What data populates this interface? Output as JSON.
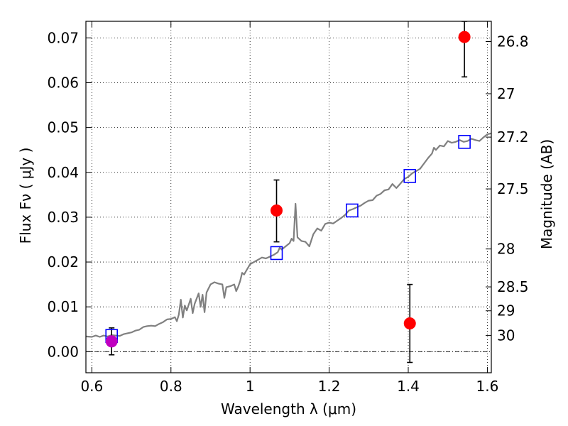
{
  "chart_data": {
    "type": "scatter",
    "xlabel": "Wavelength  λ (μm)",
    "ylabel": "Flux  Fν  ( μJy )",
    "y2label": "Magnitude (AB)",
    "xlim": [
      0.585,
      1.61
    ],
    "ylim": [
      -0.0047,
      0.0737
    ],
    "grid": true,
    "x_ticks": [
      {
        "value": 0.6,
        "label": "0.6"
      },
      {
        "value": 0.8,
        "label": "0.8"
      },
      {
        "value": 1.0,
        "label": "1"
      },
      {
        "value": 1.2,
        "label": "1.2"
      },
      {
        "value": 1.4,
        "label": "1.4"
      },
      {
        "value": 1.6,
        "label": "1.6"
      }
    ],
    "y_ticks": [
      {
        "value": 0.0,
        "label": "0.00"
      },
      {
        "value": 0.01,
        "label": "0.01"
      },
      {
        "value": 0.02,
        "label": "0.02"
      },
      {
        "value": 0.03,
        "label": "0.03"
      },
      {
        "value": 0.04,
        "label": "0.04"
      },
      {
        "value": 0.05,
        "label": "0.05"
      },
      {
        "value": 0.06,
        "label": "0.06"
      },
      {
        "value": 0.07,
        "label": "0.07"
      }
    ],
    "mag_ticks": [
      {
        "value": 26.8,
        "label": "26.8"
      },
      {
        "value": 27.0,
        "label": "27"
      },
      {
        "value": 27.2,
        "label": "27.2"
      },
      {
        "value": 27.5,
        "label": "27.5"
      },
      {
        "value": 28.0,
        "label": "28"
      },
      {
        "value": 28.5,
        "label": "28.5"
      },
      {
        "value": 29.0,
        "label": "29"
      },
      {
        "value": 30.0,
        "label": "30"
      }
    ],
    "series": [
      {
        "kind": "line",
        "color": "#808080",
        "points": [
          [
            0.585,
            0.0034
          ],
          [
            0.6,
            0.0033
          ],
          [
            0.61,
            0.0036
          ],
          [
            0.62,
            0.0033
          ],
          [
            0.63,
            0.0036
          ],
          [
            0.64,
            0.0034
          ],
          [
            0.65,
            0.0037
          ],
          [
            0.66,
            0.0036
          ],
          [
            0.67,
            0.0035
          ],
          [
            0.68,
            0.0039
          ],
          [
            0.69,
            0.0041
          ],
          [
            0.7,
            0.0043
          ],
          [
            0.71,
            0.0047
          ],
          [
            0.72,
            0.0049
          ],
          [
            0.73,
            0.0055
          ],
          [
            0.74,
            0.0057
          ],
          [
            0.75,
            0.0058
          ],
          [
            0.76,
            0.0057
          ],
          [
            0.77,
            0.0062
          ],
          [
            0.78,
            0.0066
          ],
          [
            0.79,
            0.0072
          ],
          [
            0.8,
            0.0073
          ],
          [
            0.81,
            0.0077
          ],
          [
            0.815,
            0.0068
          ],
          [
            0.82,
            0.0083
          ],
          [
            0.825,
            0.0116
          ],
          [
            0.83,
            0.0076
          ],
          [
            0.835,
            0.0103
          ],
          [
            0.84,
            0.0092
          ],
          [
            0.85,
            0.0118
          ],
          [
            0.855,
            0.0086
          ],
          [
            0.86,
            0.0107
          ],
          [
            0.87,
            0.013
          ],
          [
            0.875,
            0.01
          ],
          [
            0.88,
            0.0127
          ],
          [
            0.885,
            0.0088
          ],
          [
            0.89,
            0.0132
          ],
          [
            0.9,
            0.015
          ],
          [
            0.91,
            0.0155
          ],
          [
            0.92,
            0.0152
          ],
          [
            0.93,
            0.015
          ],
          [
            0.935,
            0.012
          ],
          [
            0.94,
            0.0144
          ],
          [
            0.95,
            0.0146
          ],
          [
            0.96,
            0.015
          ],
          [
            0.965,
            0.0135
          ],
          [
            0.97,
            0.0145
          ],
          [
            0.975,
            0.0158
          ],
          [
            0.98,
            0.0176
          ],
          [
            0.985,
            0.0172
          ],
          [
            0.99,
            0.018
          ],
          [
            1.0,
            0.0195
          ],
          [
            1.01,
            0.02
          ],
          [
            1.02,
            0.0205
          ],
          [
            1.03,
            0.021
          ],
          [
            1.04,
            0.0208
          ],
          [
            1.05,
            0.0212
          ],
          [
            1.06,
            0.0216
          ],
          [
            1.07,
            0.0222
          ],
          [
            1.075,
            0.0232
          ],
          [
            1.08,
            0.0228
          ],
          [
            1.09,
            0.0235
          ],
          [
            1.1,
            0.0242
          ],
          [
            1.105,
            0.0252
          ],
          [
            1.11,
            0.0247
          ],
          [
            1.115,
            0.033
          ],
          [
            1.12,
            0.0255
          ],
          [
            1.13,
            0.0247
          ],
          [
            1.14,
            0.0245
          ],
          [
            1.145,
            0.024
          ],
          [
            1.15,
            0.0235
          ],
          [
            1.16,
            0.0262
          ],
          [
            1.17,
            0.0275
          ],
          [
            1.18,
            0.027
          ],
          [
            1.19,
            0.0285
          ],
          [
            1.2,
            0.0288
          ],
          [
            1.21,
            0.0286
          ],
          [
            1.22,
            0.0292
          ],
          [
            1.23,
            0.0298
          ],
          [
            1.24,
            0.0305
          ],
          [
            1.25,
            0.0315
          ],
          [
            1.26,
            0.0318
          ],
          [
            1.27,
            0.0322
          ],
          [
            1.28,
            0.0326
          ],
          [
            1.29,
            0.0332
          ],
          [
            1.3,
            0.0337
          ],
          [
            1.31,
            0.0338
          ],
          [
            1.32,
            0.0348
          ],
          [
            1.33,
            0.0352
          ],
          [
            1.34,
            0.036
          ],
          [
            1.35,
            0.0362
          ],
          [
            1.36,
            0.0374
          ],
          [
            1.37,
            0.0365
          ],
          [
            1.38,
            0.0375
          ],
          [
            1.39,
            0.0385
          ],
          [
            1.4,
            0.039
          ],
          [
            1.41,
            0.0398
          ],
          [
            1.42,
            0.0403
          ],
          [
            1.43,
            0.0408
          ],
          [
            1.44,
            0.042
          ],
          [
            1.45,
            0.0432
          ],
          [
            1.46,
            0.0442
          ],
          [
            1.465,
            0.0455
          ],
          [
            1.47,
            0.045
          ],
          [
            1.48,
            0.046
          ],
          [
            1.49,
            0.0458
          ],
          [
            1.5,
            0.047
          ],
          [
            1.51,
            0.0466
          ],
          [
            1.52,
            0.0468
          ],
          [
            1.53,
            0.0472
          ],
          [
            1.54,
            0.0468
          ],
          [
            1.55,
            0.047
          ],
          [
            1.56,
            0.0475
          ],
          [
            1.57,
            0.0472
          ],
          [
            1.58,
            0.047
          ],
          [
            1.59,
            0.0478
          ],
          [
            1.6,
            0.0485
          ],
          [
            1.61,
            0.0487
          ]
        ]
      },
      {
        "kind": "model-photometry",
        "color": "#0000ff",
        "points": [
          [
            0.65,
            0.0035
          ],
          [
            1.067,
            0.022
          ],
          [
            1.258,
            0.0315
          ],
          [
            1.404,
            0.0392
          ],
          [
            1.542,
            0.0468
          ]
        ]
      },
      {
        "kind": "observed-photometry",
        "color": "#ff0000",
        "points": [
          {
            "x": 1.067,
            "y": 0.0315,
            "yerr_low": 0.007,
            "yerr_high": 0.0068
          },
          {
            "x": 1.404,
            "y": 0.0063,
            "yerr_low": 0.0087,
            "yerr_high": 0.0087
          },
          {
            "x": 1.542,
            "y": 0.0702,
            "yerr_low": 0.0089,
            "yerr_high": 0.0035
          }
        ]
      },
      {
        "kind": "observed-photometry-alt",
        "color": "#c000c0",
        "points": [
          {
            "x": 0.65,
            "y": 0.0023,
            "yerr_low": 0.003,
            "yerr_high": 0.003
          }
        ]
      }
    ],
    "zero_line": {
      "y": 0.0,
      "style": "dash-dot"
    }
  }
}
